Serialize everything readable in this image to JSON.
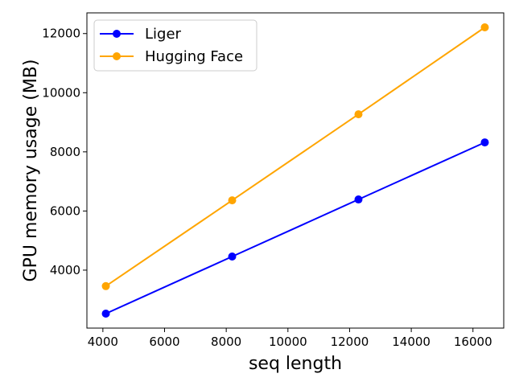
{
  "chart_data": {
    "type": "line",
    "xlabel": "seq length",
    "ylabel": "GPU memory usage (MB)",
    "x": [
      4096,
      8192,
      12288,
      16384
    ],
    "xlim": [
      3482,
      16998
    ],
    "ylim": [
      2040,
      12700
    ],
    "xticks": [
      4000,
      6000,
      8000,
      10000,
      12000,
      14000,
      16000
    ],
    "yticks": [
      4000,
      6000,
      8000,
      10000,
      12000
    ],
    "grid": false,
    "legend_position": "upper-left",
    "series": [
      {
        "name": "Liger",
        "color": "#0000ff",
        "values": [
          2530,
          4460,
          6390,
          8320
        ]
      },
      {
        "name": "Hugging Face",
        "color": "#ffa500",
        "values": [
          3460,
          6360,
          9270,
          12210
        ]
      }
    ]
  }
}
